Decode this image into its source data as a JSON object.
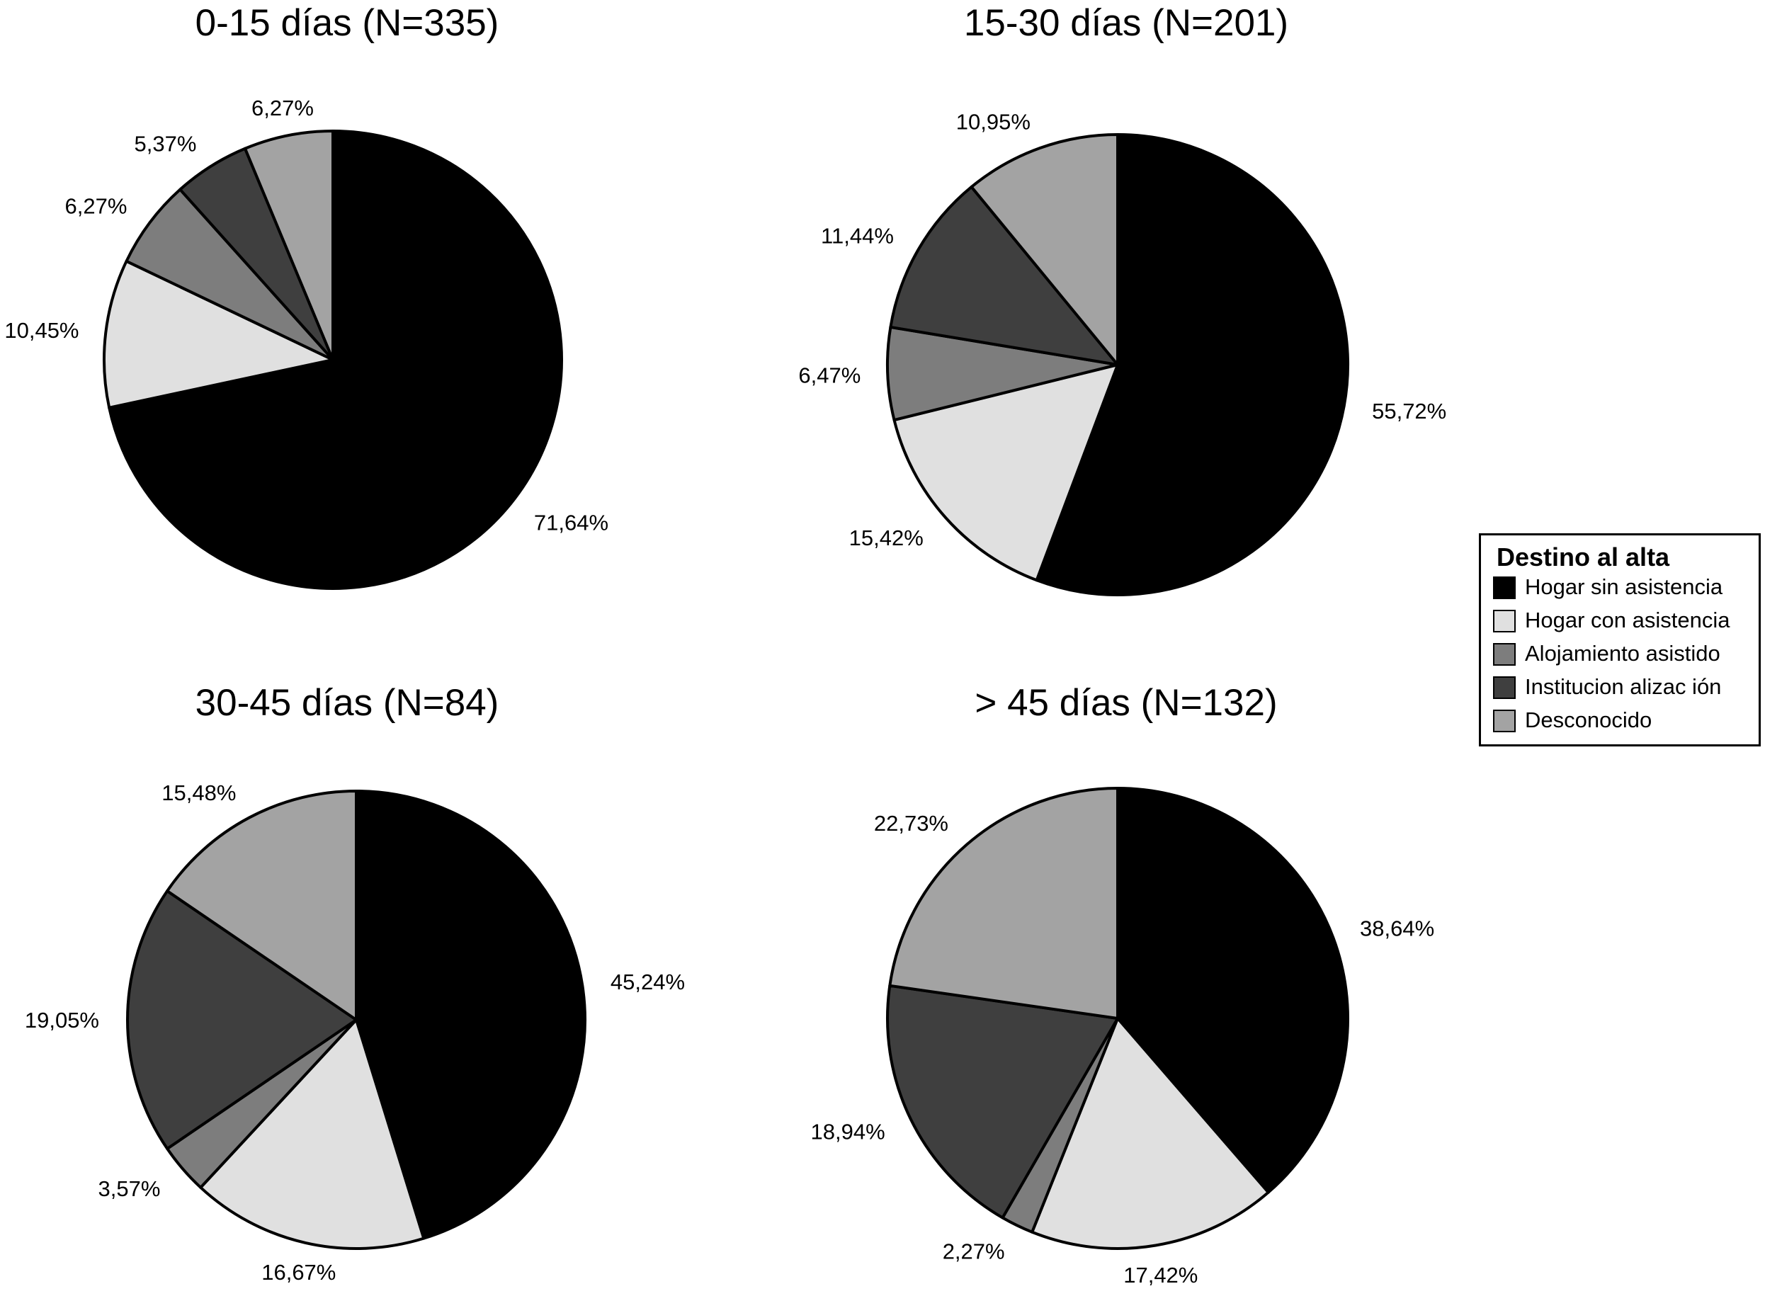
{
  "legend": {
    "title": "Destino al alta",
    "items": [
      {
        "label": "Hogar sin asistencia",
        "color": "#000000"
      },
      {
        "label": "Hogar con asistencia",
        "color": "#e0e0e0"
      },
      {
        "label": "Alojamiento asistido",
        "color": "#7d7d7d"
      },
      {
        "label": "Institucion alizac ión",
        "color": "#3f3f3f"
      },
      {
        "label": "Desconocido",
        "color": "#a3a3a3"
      }
    ]
  },
  "chart_data": [
    {
      "type": "pie",
      "title": "0-15 días (N=335)",
      "categories": [
        "Hogar sin asistencia",
        "Hogar con asistencia",
        "Alojamiento asistido",
        "Institucion alizac ión",
        "Desconocido"
      ],
      "values": [
        71.64,
        10.45,
        6.27,
        5.37,
        6.27
      ],
      "labels": [
        "71,64%",
        "10,45%",
        "6,27%",
        "5,37%",
        "6,27%"
      ]
    },
    {
      "type": "pie",
      "title": "15-30 días (N=201)",
      "categories": [
        "Hogar sin asistencia",
        "Hogar con asistencia",
        "Alojamiento asistido",
        "Institucion alizac ión",
        "Desconocido"
      ],
      "values": [
        55.72,
        15.42,
        6.47,
        11.44,
        10.95
      ],
      "labels": [
        "55,72%",
        "15,42%",
        "6,47%",
        "11,44%",
        "10,95%"
      ]
    },
    {
      "type": "pie",
      "title": "30-45 días (N=84)",
      "categories": [
        "Hogar sin asistencia",
        "Hogar con asistencia",
        "Alojamiento asistido",
        "Institucion alizac ión",
        "Desconocido"
      ],
      "values": [
        45.24,
        16.67,
        3.57,
        19.05,
        15.48
      ],
      "labels": [
        "45,24%",
        "16,67%",
        "3,57%",
        "19,05%",
        "15,48%"
      ]
    },
    {
      "type": "pie",
      "title": "> 45 días (N=132)",
      "categories": [
        "Hogar sin asistencia",
        "Hogar con asistencia",
        "Alojamiento asistido",
        "Institucion alizac ión",
        "Desconocido"
      ],
      "values": [
        38.64,
        17.42,
        2.27,
        18.94,
        22.73
      ],
      "labels": [
        "38,64%",
        "17,42%",
        "2,27%",
        "18,94%",
        "22,73%"
      ]
    }
  ]
}
